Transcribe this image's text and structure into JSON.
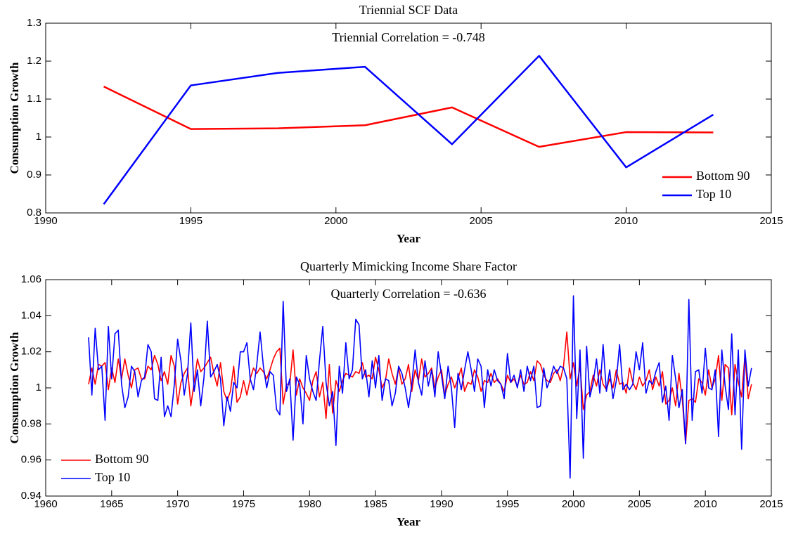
{
  "chart_data": [
    {
      "type": "line",
      "title": "Triennial SCF Data",
      "annotation": "Triennial Correlation = -0.748",
      "xlabel": "Year",
      "ylabel": "Consumption Growth",
      "x": [
        1992,
        1995,
        1998,
        2001,
        2004,
        2007,
        2010,
        2013
      ],
      "series": [
        {
          "name": "Bottom 90",
          "color": "#ff0000",
          "values": [
            1.133,
            1.021,
            1.023,
            1.031,
            1.078,
            0.974,
            1.013,
            1.012
          ]
        },
        {
          "name": "Top 10",
          "color": "#0000ff",
          "values": [
            0.823,
            1.136,
            1.169,
            1.185,
            0.981,
            1.214,
            0.92,
            1.059
          ]
        }
      ],
      "xlim": [
        1990,
        2015
      ],
      "xticks": [
        1990,
        1995,
        2000,
        2005,
        2010,
        2015
      ],
      "ylim": [
        0.8,
        1.3
      ],
      "yticks": [
        0.8,
        0.9,
        1,
        1.1,
        1.2,
        1.3
      ],
      "legend": "lower right"
    },
    {
      "type": "line",
      "title": "Quarterly Mimicking Income Share Factor",
      "annotation": "Quarterly Correlation = -0.636",
      "xlabel": "Year",
      "ylabel": "Consumption Growth",
      "x": [
        1963.25,
        1963.5,
        1963.75,
        1964,
        1964.25,
        1964.5,
        1964.75,
        1965,
        1965.25,
        1965.5,
        1965.75,
        1966,
        1966.25,
        1966.5,
        1966.75,
        1967,
        1967.25,
        1967.5,
        1967.75,
        1968,
        1968.25,
        1968.5,
        1968.75,
        1969,
        1969.25,
        1969.5,
        1969.75,
        1970,
        1970.25,
        1970.5,
        1970.75,
        1971,
        1971.25,
        1971.5,
        1971.75,
        1972,
        1972.25,
        1972.5,
        1972.75,
        1973,
        1973.25,
        1973.5,
        1973.75,
        1974,
        1974.25,
        1974.5,
        1974.75,
        1975,
        1975.25,
        1975.5,
        1975.75,
        1976,
        1976.25,
        1976.5,
        1976.75,
        1977,
        1977.25,
        1977.5,
        1977.75,
        1978,
        1978.25,
        1978.5,
        1978.75,
        1979,
        1979.25,
        1979.5,
        1979.75,
        1980,
        1980.25,
        1980.5,
        1980.75,
        1981,
        1981.25,
        1981.5,
        1981.75,
        1982,
        1982.25,
        1982.5,
        1982.75,
        1983,
        1983.25,
        1983.5,
        1983.75,
        1984,
        1984.25,
        1984.5,
        1984.75,
        1985,
        1985.25,
        1985.5,
        1985.75,
        1986,
        1986.25,
        1986.5,
        1986.75,
        1987,
        1987.25,
        1987.5,
        1987.75,
        1988,
        1988.25,
        1988.5,
        1988.75,
        1989,
        1989.25,
        1989.5,
        1989.75,
        1990,
        1990.25,
        1990.5,
        1990.75,
        1991,
        1991.25,
        1991.5,
        1991.75,
        1992,
        1992.25,
        1992.5,
        1992.75,
        1993,
        1993.25,
        1993.5,
        1993.75,
        1994,
        1994.25,
        1994.5,
        1994.75,
        1995,
        1995.25,
        1995.5,
        1995.75,
        1996,
        1996.25,
        1996.5,
        1996.75,
        1997,
        1997.25,
        1997.5,
        1997.75,
        1998,
        1998.25,
        1998.5,
        1998.75,
        1999,
        1999.25,
        1999.5,
        1999.75,
        2000,
        2000.25,
        2000.5,
        2000.75,
        2001,
        2001.25,
        2001.5,
        2001.75,
        2002,
        2002.25,
        2002.5,
        2002.75,
        2003,
        2003.25,
        2003.5,
        2003.75,
        2004,
        2004.25,
        2004.5,
        2004.75,
        2005,
        2005.25,
        2005.5,
        2005.75,
        2006,
        2006.25,
        2006.5,
        2006.75,
        2007,
        2007.25,
        2007.5,
        2007.75,
        2008,
        2008.25,
        2008.5,
        2008.75,
        2009,
        2009.25,
        2009.5,
        2009.75,
        2010,
        2010.25,
        2010.5,
        2010.75,
        2011,
        2011.25,
        2011.5,
        2011.75,
        2012,
        2012.25,
        2012.5,
        2012.75,
        2013,
        2013.25,
        2013.5
      ],
      "series": [
        {
          "name": "Bottom 90",
          "color": "#ff0000",
          "values": [
            1.002,
            1.011,
            1.002,
            1.013,
            1.012,
            1.014,
            0.999,
            1.011,
            1.003,
            1.016,
            1.005,
            1.016,
            1.007,
            1.0,
            1.01,
            1.011,
            1.005,
            1.005,
            1.012,
            1.01,
            1.018,
            1.013,
            1.004,
            1.009,
            1.002,
            1.018,
            1.012,
            0.991,
            1.003,
            1.008,
            1.011,
            0.99,
            1.003,
            1.016,
            1.009,
            1.011,
            1.014,
            1.017,
            1.008,
            1.001,
            1.014,
            0.998,
            0.993,
            0.998,
            1.012,
            0.992,
            0.995,
            1.004,
            0.996,
            1.005,
            1.011,
            1.008,
            1.011,
            1.009,
            1.005,
            1.01,
            1.016,
            1.02,
            1.022,
            0.991,
            1.002,
            1.002,
            1.021,
            0.996,
            1.005,
            1.0,
            0.997,
            0.993,
            1.004,
            1.009,
            0.995,
            1.003,
            0.983,
            1.013,
            0.986,
            1.004,
            0.998,
            1.004,
            1.008,
            1.007,
            1.006,
            1.009,
            1.008,
            1.014,
            1.006,
            1.007,
            1.005,
            1.017,
            1.01,
            1.0,
            1.004,
            1.016,
            1.008,
            1.002,
            1.011,
            1.002,
            1.005,
            1.013,
            0.998,
            1.01,
            1.004,
            1.016,
            1.006,
            1.008,
            1.011,
            1.0,
            1.006,
            1.01,
            0.996,
            1.002,
            1.006,
            1.0,
            1.005,
            1.011,
            0.998,
            1.003,
            1.002,
            1.01,
            1.006,
            0.998,
            1.004,
            1.003,
            1.008,
            1.003,
            1.005,
            1.002,
            0.998,
            1.007,
            1.003,
            1.005,
            1.001,
            1.007,
            1.002,
            1.003,
            1.009,
            1.004,
            1.015,
            1.013,
            1.007,
            1.004,
            1.003,
            1.008,
            1.01,
            1.004,
            1.012,
            1.031,
            1.005,
            1.014,
            1.001,
            1.012,
            0.988,
            0.996,
            0.998,
            1.007,
            1.001,
            1.01,
            1.002,
            0.999,
            1.005,
            1.0,
            1.01,
            1.002,
            1.003,
            0.997,
            1.011,
            1.003,
            0.999,
            1.006,
            1.001,
            1.004,
            1.01,
            0.999,
            1.006,
            1.001,
            1.009,
            0.991,
            0.993,
            1.0,
            0.99,
            1.008,
            0.994,
            0.969,
            0.993,
            0.994,
            0.992,
            1.005,
            1.003,
            0.996,
            1.01,
            1.0,
            1.005,
            1.018,
            0.993,
            1.013,
            1.011,
            0.985,
            1.013,
            1.003,
            0.995,
            1.018,
            0.994,
            1.002
          ]
        },
        {
          "name": "Top 10",
          "color": "#0000ff",
          "values": [
            1.028,
            0.996,
            1.033,
            1.01,
            1.012,
            0.982,
            1.034,
            1.005,
            1.03,
            1.032,
            1.002,
            0.989,
            0.995,
            1.012,
            1.009,
            0.995,
            1.004,
            1.006,
            1.024,
            1.02,
            0.994,
            0.993,
            1.017,
            0.984,
            0.99,
            0.984,
            1.002,
            1.027,
            1.015,
            0.996,
            1.008,
            1.036,
            0.998,
            1.01,
            0.99,
            1.006,
            1.037,
            1.006,
            1.009,
            1.013,
            1.005,
            0.979,
            0.995,
            0.987,
            1.003,
            1.0,
            1.02,
            1.02,
            1.025,
            1.005,
            0.999,
            1.013,
            1.031,
            1.012,
            1.0,
            1.009,
            1.007,
            0.988,
            0.985,
            1.048,
            0.998,
            1.005,
            0.971,
            1.006,
            1.002,
            0.98,
            1.018,
            1.005,
            0.998,
            0.993,
            1.015,
            1.034,
            1.003,
            0.99,
            0.998,
            0.968,
            1.012,
            0.997,
            1.025,
            1.005,
            1.01,
            1.038,
            1.035,
            1.005,
            1.01,
            0.995,
            1.015,
            1.0,
            1.018,
            0.993,
            1.005,
            1.004,
            0.99,
            0.997,
            1.012,
            1.008,
            1.0,
            0.989,
            1.002,
            1.021,
            1.003,
            0.996,
            1.015,
            1.001,
            1.01,
            0.995,
            1.02,
            1.007,
            0.994,
            1.012,
            1.0,
            0.978,
            1.008,
            0.999,
            1.01,
            1.02,
            1.01,
            0.998,
            1.016,
            1.012,
            0.989,
            1.01,
            1.001,
            1.01,
            1.004,
            1.002,
            0.994,
            1.019,
            1.003,
            1.007,
            1.0,
            1.01,
            0.998,
            1.012,
            1.004,
            1.012,
            0.989,
            0.99,
            1.011,
            1.0,
            1.005,
            1.012,
            1.008,
            1.012,
            1.011,
            1.005,
            0.95,
            1.051,
            0.983,
            1.021,
            0.961,
            1.023,
            0.995,
            1.003,
            1.016,
            0.997,
            1.024,
            0.998,
            1.01,
            0.994,
            1.004,
            1.024,
            0.999,
            1.002,
            0.999,
            1.002,
            1.02,
            1.01,
            1.025,
            0.997,
            1.004,
            1.002,
            1.009,
            1.014,
            0.992,
            1.001,
            0.982,
            1.018,
            1.005,
            0.989,
            0.999,
            0.969,
            1.049,
            0.982,
            1.009,
            1.01,
            0.997,
            1.022,
            1.0,
            0.999,
            1.01,
            0.973,
            1.021,
            1.001,
            0.988,
            1.03,
            0.985,
            1.021,
            0.966,
            1.021,
            1.001,
            1.011
          ]
        }
      ],
      "xlim": [
        1960,
        2015
      ],
      "xticks": [
        1960,
        1965,
        1970,
        1975,
        1980,
        1985,
        1990,
        1995,
        2000,
        2005,
        2010,
        2015
      ],
      "ylim": [
        0.94,
        1.06
      ],
      "yticks": [
        0.94,
        0.96,
        0.98,
        1,
        1.02,
        1.04,
        1.06
      ],
      "legend": "lower left"
    }
  ]
}
